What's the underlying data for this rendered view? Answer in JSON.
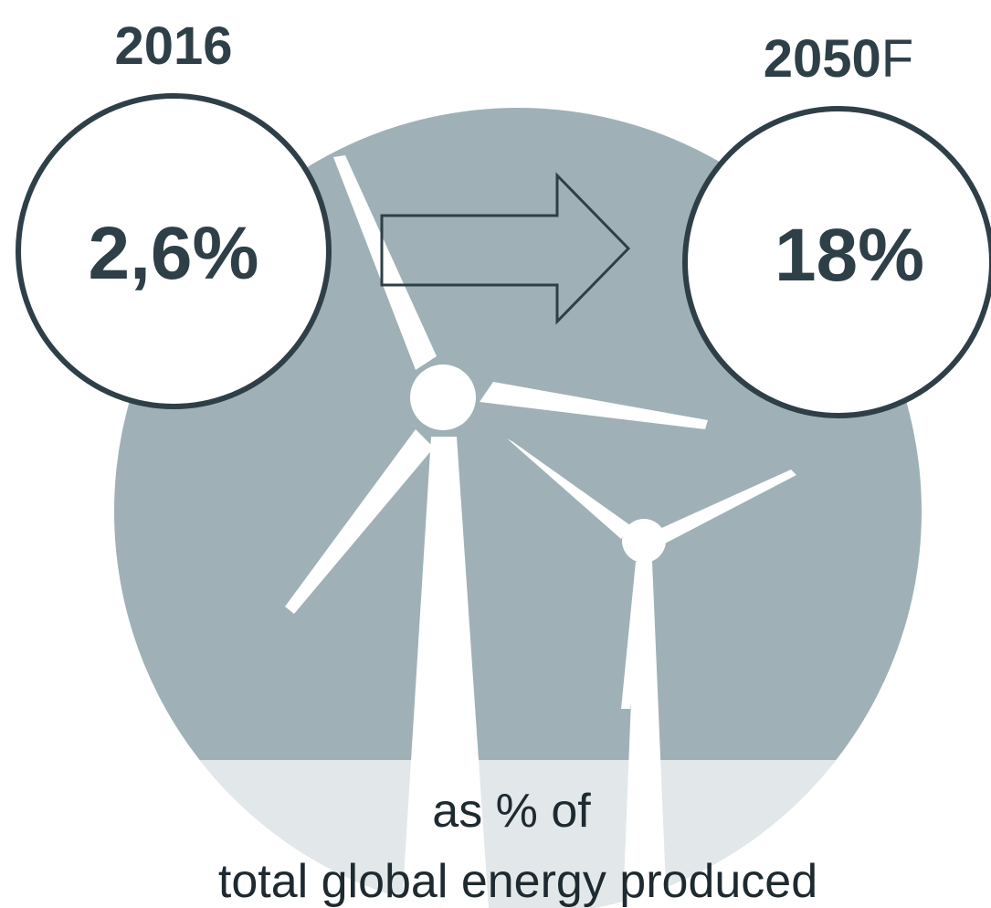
{
  "left": {
    "year": "2016",
    "value": "2,6%"
  },
  "right": {
    "year": "2050",
    "suffix": "F",
    "value": "18%"
  },
  "caption": [
    "as % of",
    "total global energy produced"
  ]
}
